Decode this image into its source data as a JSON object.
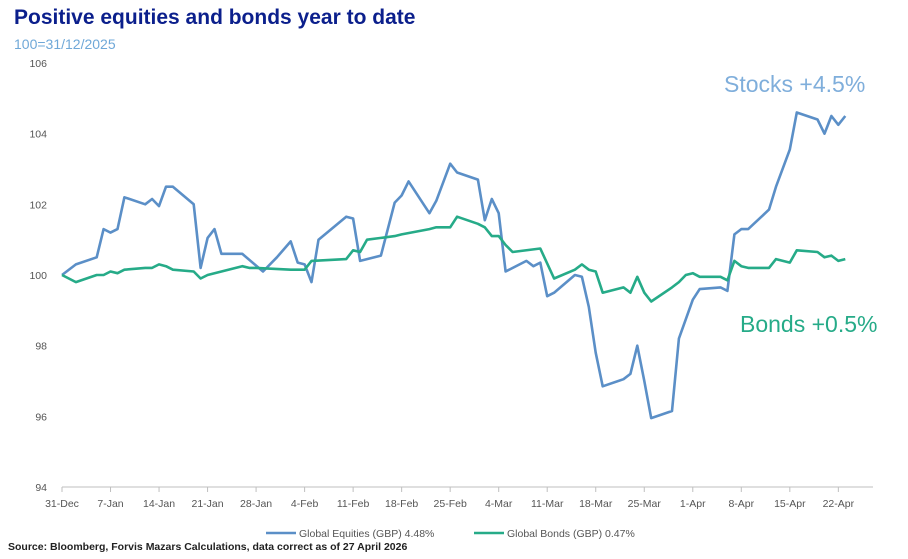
{
  "title": "Positive equities and bonds year to date",
  "subtitle": "100=31/12/2025",
  "source": "Source: Bloomberg, Forvis Mazars Calculations, data correct as of 27 April 2026",
  "chart_data": {
    "type": "line",
    "title": "Positive equities and bonds year to date",
    "subtitle": "100=31/12/2025",
    "xlabel": "",
    "ylabel": "",
    "ylim": [
      94,
      106
    ],
    "yticks": [
      94,
      96,
      98,
      100,
      102,
      104,
      106
    ],
    "xlim": [
      0,
      117
    ],
    "xticks": [
      {
        "x": 0,
        "label": "31-Dec"
      },
      {
        "x": 7,
        "label": "7-Jan"
      },
      {
        "x": 14,
        "label": "14-Jan"
      },
      {
        "x": 21,
        "label": "21-Jan"
      },
      {
        "x": 28,
        "label": "28-Jan"
      },
      {
        "x": 35,
        "label": "4-Feb"
      },
      {
        "x": 42,
        "label": "11-Feb"
      },
      {
        "x": 49,
        "label": "18-Feb"
      },
      {
        "x": 56,
        "label": "25-Feb"
      },
      {
        "x": 63,
        "label": "4-Mar"
      },
      {
        "x": 70,
        "label": "11-Mar"
      },
      {
        "x": 77,
        "label": "18-Mar"
      },
      {
        "x": 84,
        "label": "25-Mar"
      },
      {
        "x": 91,
        "label": "1-Apr"
      },
      {
        "x": 98,
        "label": "8-Apr"
      },
      {
        "x": 105,
        "label": "15-Apr"
      },
      {
        "x": 112,
        "label": "22-Apr"
      }
    ],
    "grid": false,
    "legend_position": "bottom",
    "series": [
      {
        "name": "Global Equities (GBP) 4.48%",
        "color": "#5b8fc7",
        "points": [
          [
            0,
            100.0
          ],
          [
            2,
            100.3
          ],
          [
            5,
            100.5
          ],
          [
            6,
            101.3
          ],
          [
            7,
            101.2
          ],
          [
            8,
            101.3
          ],
          [
            9,
            102.2
          ],
          [
            12,
            102.0
          ],
          [
            13,
            102.15
          ],
          [
            14,
            101.95
          ],
          [
            15,
            102.5
          ],
          [
            16,
            102.5
          ],
          [
            19,
            102.0
          ],
          [
            20,
            100.2
          ],
          [
            21,
            101.05
          ],
          [
            22,
            101.3
          ],
          [
            23,
            100.6
          ],
          [
            26,
            100.6
          ],
          [
            29,
            100.1
          ],
          [
            31,
            100.5
          ],
          [
            33,
            100.95
          ],
          [
            34,
            100.35
          ],
          [
            35,
            100.3
          ],
          [
            36,
            99.8
          ],
          [
            37,
            101.0
          ],
          [
            41,
            101.65
          ],
          [
            42,
            101.6
          ],
          [
            43,
            100.4
          ],
          [
            46,
            100.55
          ],
          [
            48,
            102.05
          ],
          [
            49,
            102.25
          ],
          [
            50,
            102.65
          ],
          [
            53,
            101.75
          ],
          [
            54,
            102.1
          ],
          [
            56,
            103.15
          ],
          [
            57,
            102.9
          ],
          [
            60,
            102.7
          ],
          [
            61,
            101.55
          ],
          [
            62,
            102.15
          ],
          [
            63,
            101.75
          ],
          [
            64,
            100.1
          ],
          [
            67,
            100.4
          ],
          [
            68,
            100.25
          ],
          [
            69,
            100.35
          ],
          [
            70,
            99.4
          ],
          [
            71,
            99.5
          ],
          [
            74,
            100.0
          ],
          [
            75,
            99.95
          ],
          [
            76,
            99.1
          ],
          [
            77,
            97.8
          ],
          [
            78,
            96.85
          ],
          [
            81,
            97.05
          ],
          [
            82,
            97.2
          ],
          [
            83,
            98.0
          ],
          [
            84,
            97.0
          ],
          [
            85,
            95.95
          ],
          [
            88,
            96.15
          ],
          [
            89,
            98.2
          ],
          [
            91,
            99.3
          ],
          [
            92,
            99.6
          ],
          [
            95,
            99.65
          ],
          [
            96,
            99.55
          ],
          [
            97,
            101.15
          ],
          [
            98,
            101.3
          ],
          [
            99,
            101.3
          ],
          [
            102,
            101.85
          ],
          [
            103,
            102.5
          ],
          [
            105,
            103.55
          ],
          [
            106,
            104.6
          ],
          [
            109,
            104.4
          ],
          [
            110,
            104.0
          ],
          [
            111,
            104.5
          ],
          [
            112,
            104.25
          ],
          [
            113,
            104.5
          ]
        ]
      },
      {
        "name": "Global Bonds (GBP) 0.47%",
        "color": "#26ab88",
        "points": [
          [
            0,
            100.0
          ],
          [
            2,
            99.8
          ],
          [
            5,
            100.0
          ],
          [
            6,
            100.0
          ],
          [
            7,
            100.1
          ],
          [
            8,
            100.05
          ],
          [
            9,
            100.15
          ],
          [
            12,
            100.2
          ],
          [
            13,
            100.2
          ],
          [
            14,
            100.3
          ],
          [
            15,
            100.25
          ],
          [
            16,
            100.15
          ],
          [
            19,
            100.1
          ],
          [
            20,
            99.9
          ],
          [
            21,
            100.0
          ],
          [
            26,
            100.25
          ],
          [
            27,
            100.2
          ],
          [
            28,
            100.2
          ],
          [
            33,
            100.15
          ],
          [
            35,
            100.15
          ],
          [
            36,
            100.4
          ],
          [
            41,
            100.45
          ],
          [
            42,
            100.7
          ],
          [
            43,
            100.65
          ],
          [
            44,
            101.0
          ],
          [
            48,
            101.1
          ],
          [
            49,
            101.15
          ],
          [
            53,
            101.3
          ],
          [
            54,
            101.35
          ],
          [
            56,
            101.35
          ],
          [
            57,
            101.65
          ],
          [
            60,
            101.45
          ],
          [
            61,
            101.35
          ],
          [
            62,
            101.1
          ],
          [
            63,
            101.1
          ],
          [
            64,
            100.85
          ],
          [
            65,
            100.65
          ],
          [
            69,
            100.75
          ],
          [
            71,
            99.9
          ],
          [
            74,
            100.15
          ],
          [
            75,
            100.3
          ],
          [
            76,
            100.15
          ],
          [
            77,
            100.1
          ],
          [
            78,
            99.5
          ],
          [
            81,
            99.65
          ],
          [
            82,
            99.5
          ],
          [
            83,
            99.95
          ],
          [
            84,
            99.5
          ],
          [
            85,
            99.25
          ],
          [
            88,
            99.65
          ],
          [
            89,
            99.8
          ],
          [
            90,
            100.0
          ],
          [
            91,
            100.05
          ],
          [
            92,
            99.95
          ],
          [
            95,
            99.95
          ],
          [
            96,
            99.85
          ],
          [
            97,
            100.4
          ],
          [
            98,
            100.25
          ],
          [
            99,
            100.2
          ],
          [
            102,
            100.2
          ],
          [
            103,
            100.45
          ],
          [
            105,
            100.35
          ],
          [
            106,
            100.7
          ],
          [
            109,
            100.65
          ],
          [
            110,
            100.5
          ],
          [
            111,
            100.55
          ],
          [
            112,
            100.4
          ],
          [
            113,
            100.45
          ]
        ]
      }
    ],
    "annotations": [
      {
        "text": "Stocks +4.5%",
        "color": "#7faedb"
      },
      {
        "text": "Bonds +0.5%",
        "color": "#26ab88"
      }
    ]
  }
}
